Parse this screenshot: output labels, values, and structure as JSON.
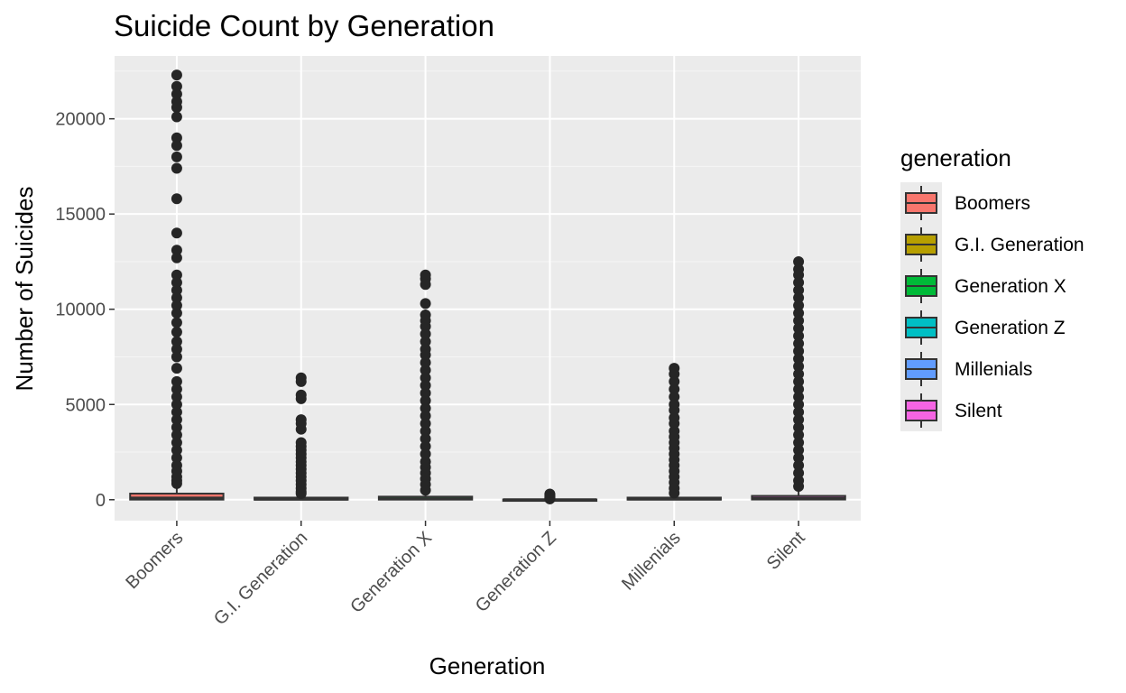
{
  "chart_data": {
    "type": "boxplot",
    "title": "Suicide Count by Generation",
    "xlabel": "Generation",
    "ylabel": "Number of Suicides",
    "ylim": [
      -1100,
      23300
    ],
    "yticks": [
      0,
      5000,
      10000,
      15000,
      20000
    ],
    "grid": true,
    "legend_position": "right",
    "legend_title": "generation",
    "categories": [
      "Boomers",
      "G.I. Generation",
      "Generation X",
      "Generation Z",
      "Millenials",
      "Silent"
    ],
    "colors": [
      "#F8766D",
      "#B79F00",
      "#00BA38",
      "#00BFC4",
      "#619CFF",
      "#F564E3"
    ],
    "series": [
      {
        "name": "Boomers",
        "q1": 5,
        "median": 90,
        "q3": 320,
        "whisker_low": 0,
        "whisker_high": 790,
        "outliers": [
          22300,
          21700,
          21300,
          20900,
          20600,
          20100,
          19000,
          18600,
          18000,
          17400,
          15800,
          14000,
          13100,
          12700,
          11800,
          11400,
          11000,
          10600,
          10200,
          9800,
          9300,
          8800,
          8300,
          7900,
          7500,
          6900,
          6200,
          5800,
          5400,
          5000,
          4600,
          4200,
          3800,
          3400,
          3000,
          2600,
          2200,
          1800,
          1500,
          1200,
          1000,
          850
        ]
      },
      {
        "name": "G.I. Generation",
        "q1": 2,
        "median": 25,
        "q3": 110,
        "whisker_low": 0,
        "whisker_high": 280,
        "outliers": [
          6400,
          6200,
          5500,
          5300,
          4200,
          4000,
          3700,
          3000,
          2800,
          2600,
          2400,
          2200,
          2000,
          1800,
          1600,
          1400,
          1200,
          1000,
          800,
          600,
          420,
          320
        ]
      },
      {
        "name": "Generation X",
        "q1": 5,
        "median": 45,
        "q3": 160,
        "whisker_low": 0,
        "whisker_high": 390,
        "outliers": [
          11800,
          11600,
          11300,
          10300,
          9700,
          9400,
          9100,
          8700,
          8300,
          7900,
          7600,
          7200,
          6800,
          6400,
          6000,
          5600,
          5200,
          4800,
          4400,
          4000,
          3600,
          3200,
          2800,
          2400,
          2000,
          1700,
          1400,
          1100,
          800,
          500
        ]
      },
      {
        "name": "Generation Z",
        "q1": 0,
        "median": 2,
        "q3": 10,
        "whisker_low": 0,
        "whisker_high": 30,
        "outliers": [
          300,
          250,
          200,
          160,
          120,
          90,
          60,
          40
        ]
      },
      {
        "name": "Millenials",
        "q1": 3,
        "median": 30,
        "q3": 110,
        "whisker_low": 0,
        "whisker_high": 270,
        "outliers": [
          6900,
          6600,
          6200,
          5800,
          5400,
          5000,
          4700,
          4300,
          4000,
          3600,
          3300,
          3000,
          2700,
          2400,
          2100,
          1800,
          1500,
          1200,
          900,
          600,
          350
        ]
      },
      {
        "name": "Silent",
        "q1": 10,
        "median": 70,
        "q3": 200,
        "whisker_low": 0,
        "whisker_high": 490,
        "outliers": [
          12500,
          12100,
          11800,
          11400,
          11000,
          10600,
          10200,
          9800,
          9400,
          9000,
          8600,
          8200,
          7800,
          7400,
          7000,
          6600,
          6200,
          5800,
          5400,
          5000,
          4600,
          4200,
          3800,
          3400,
          3000,
          2600,
          2200,
          1800,
          1400,
          1000,
          700
        ]
      }
    ]
  }
}
